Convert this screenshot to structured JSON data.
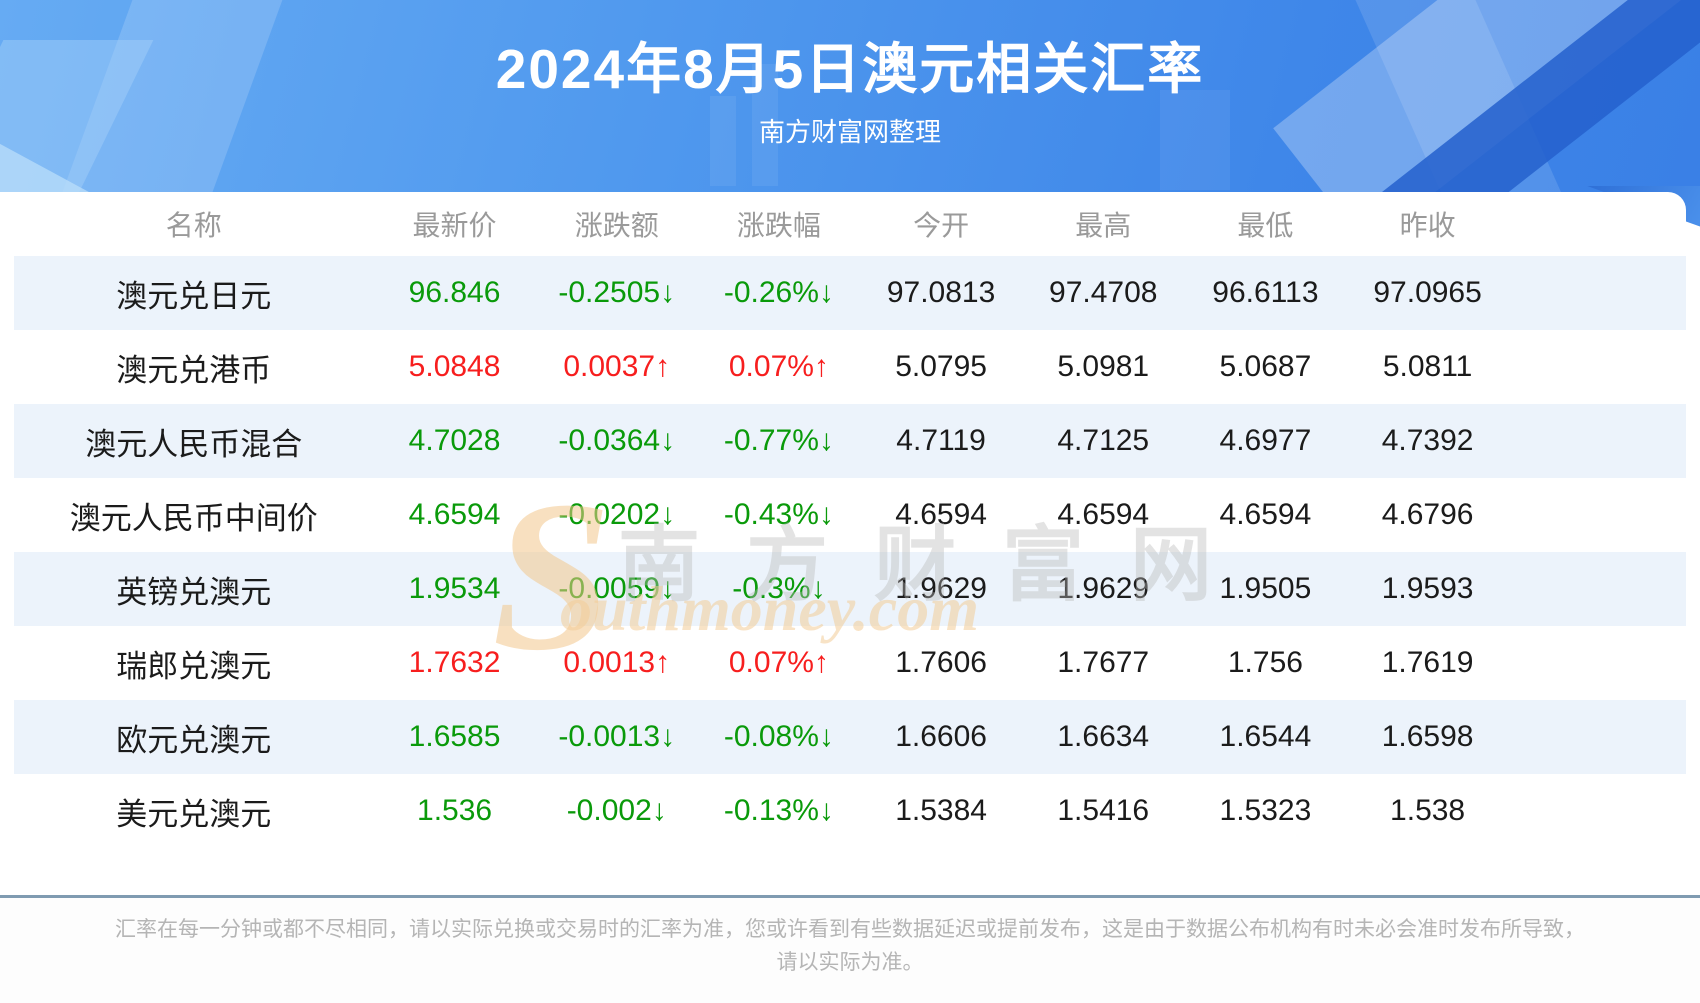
{
  "banner": {
    "title": "2024年8月5日澳元相关汇率",
    "subtitle": "南方财富网整理"
  },
  "chart_data": {
    "type": "table",
    "title": "2024年8月5日澳元相关汇率",
    "headers": [
      "名称",
      "最新价",
      "涨跌额",
      "涨跌幅",
      "今开",
      "最高",
      "最低",
      "昨收"
    ],
    "rows": [
      {
        "name": "澳元兑日元",
        "latest": "96.846",
        "change": "-0.2505↓",
        "pct": "-0.26%↓",
        "open": "97.0813",
        "high": "97.4708",
        "low": "96.6113",
        "prev": "97.0965",
        "trend": "down"
      },
      {
        "name": "澳元兑港币",
        "latest": "5.0848",
        "change": "0.0037↑",
        "pct": "0.07%↑",
        "open": "5.0795",
        "high": "5.0981",
        "low": "5.0687",
        "prev": "5.0811",
        "trend": "up"
      },
      {
        "name": "澳元人民币混合",
        "latest": "4.7028",
        "change": "-0.0364↓",
        "pct": "-0.77%↓",
        "open": "4.7119",
        "high": "4.7125",
        "low": "4.6977",
        "prev": "4.7392",
        "trend": "down"
      },
      {
        "name": "澳元人民币中间价",
        "latest": "4.6594",
        "change": "-0.0202↓",
        "pct": "-0.43%↓",
        "open": "4.6594",
        "high": "4.6594",
        "low": "4.6594",
        "prev": "4.6796",
        "trend": "down"
      },
      {
        "name": "英镑兑澳元",
        "latest": "1.9534",
        "change": "-0.0059↓",
        "pct": "-0.3%↓",
        "open": "1.9629",
        "high": "1.9629",
        "low": "1.9505",
        "prev": "1.9593",
        "trend": "down"
      },
      {
        "name": "瑞郎兑澳元",
        "latest": "1.7632",
        "change": "0.0013↑",
        "pct": "0.07%↑",
        "open": "1.7606",
        "high": "1.7677",
        "low": "1.756",
        "prev": "1.7619",
        "trend": "up"
      },
      {
        "name": "欧元兑澳元",
        "latest": "1.6585",
        "change": "-0.0013↓",
        "pct": "-0.08%↓",
        "open": "1.6606",
        "high": "1.6634",
        "low": "1.6544",
        "prev": "1.6598",
        "trend": "down"
      },
      {
        "name": "美元兑澳元",
        "latest": "1.536",
        "change": "-0.002↓",
        "pct": "-0.13%↓",
        "open": "1.5384",
        "high": "1.5416",
        "low": "1.5323",
        "prev": "1.538",
        "trend": "down"
      }
    ]
  },
  "colors": {
    "up": "#f71e1e",
    "down": "#0a9a0a",
    "stripe": "#ecf3fb",
    "banner_blue": "#4b93ec"
  },
  "watermark": {
    "s": "S",
    "cn": "南方财富网",
    "en": "outhmoney.com"
  },
  "footer": {
    "line1": "汇率在每一分钟或都不尽相同，请以实际兑换或交易时的汇率为准，您或许看到有些数据延迟或提前发布，这是由于数据公布机构有时未必会准时发布所导致，",
    "line2": "请以实际为准。"
  }
}
